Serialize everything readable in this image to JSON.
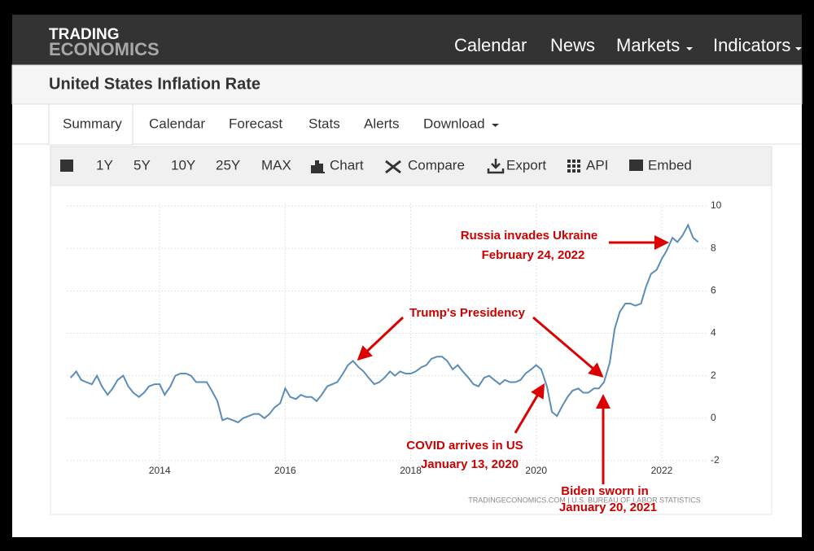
{
  "header": {
    "logo_top": "TRADING",
    "logo_bottom": "ECONOMICS",
    "menu": [
      "Calendar",
      "News",
      "Markets",
      "Indicators"
    ]
  },
  "page_title": "United States Inflation Rate",
  "tabs": [
    "Summary",
    "Calendar",
    "Forecast",
    "Stats",
    "Alerts",
    "Download"
  ],
  "toolbar": [
    "1Y",
    "5Y",
    "10Y",
    "25Y",
    "MAX",
    "Chart",
    "Compare",
    "Export",
    "API",
    "Embed"
  ],
  "chart_data": {
    "type": "line",
    "color": "#5b8db8",
    "x": [
      2012.58,
      2012.67,
      2012.75,
      2012.83,
      2012.92,
      2013,
      2013.08,
      2013.17,
      2013.25,
      2013.33,
      2013.42,
      2013.5,
      2013.58,
      2013.67,
      2013.75,
      2013.83,
      2013.92,
      2014,
      2014.08,
      2014.17,
      2014.25,
      2014.33,
      2014.42,
      2014.5,
      2014.58,
      2014.67,
      2014.75,
      2014.83,
      2014.92,
      2015,
      2015.08,
      2015.17,
      2015.25,
      2015.33,
      2015.42,
      2015.5,
      2015.58,
      2015.67,
      2015.75,
      2015.83,
      2015.92,
      2016,
      2016.08,
      2016.17,
      2016.25,
      2016.33,
      2016.42,
      2016.5,
      2016.58,
      2016.67,
      2016.75,
      2016.83,
      2016.92,
      2017,
      2017.08,
      2017.17,
      2017.25,
      2017.33,
      2017.42,
      2017.5,
      2017.58,
      2017.67,
      2017.75,
      2017.83,
      2017.92,
      2018,
      2018.08,
      2018.17,
      2018.25,
      2018.33,
      2018.42,
      2018.5,
      2018.58,
      2018.67,
      2018.75,
      2018.83,
      2018.92,
      2019,
      2019.08,
      2019.17,
      2019.25,
      2019.33,
      2019.42,
      2019.5,
      2019.58,
      2019.67,
      2019.75,
      2019.83,
      2019.92,
      2020,
      2020.08,
      2020.17,
      2020.25,
      2020.33,
      2020.42,
      2020.5,
      2020.58,
      2020.67,
      2020.75,
      2020.83,
      2020.92,
      2021,
      2021.08,
      2021.17,
      2021.25,
      2021.33,
      2021.42,
      2021.5,
      2021.58,
      2021.67,
      2021.75,
      2021.83,
      2021.92,
      2022,
      2022.08,
      2022.17,
      2022.25,
      2022.33,
      2022.42,
      2022.5,
      2022.58
    ],
    "values": [
      1.9,
      2.2,
      1.8,
      1.7,
      1.6,
      2.0,
      1.5,
      1.1,
      1.4,
      1.8,
      2.0,
      1.5,
      1.2,
      1.0,
      1.2,
      1.5,
      1.6,
      1.6,
      1.1,
      1.5,
      2.0,
      2.1,
      2.1,
      2.0,
      1.7,
      1.7,
      1.7,
      1.3,
      0.8,
      -0.1,
      0.0,
      -0.1,
      -0.2,
      0.0,
      0.1,
      0.2,
      0.2,
      0.0,
      0.2,
      0.5,
      0.7,
      1.4,
      1.0,
      0.9,
      1.1,
      1.0,
      1.0,
      0.8,
      1.1,
      1.5,
      1.6,
      1.7,
      2.1,
      2.5,
      2.7,
      2.4,
      2.2,
      1.9,
      1.6,
      1.7,
      1.9,
      2.2,
      2.0,
      2.2,
      2.1,
      2.1,
      2.2,
      2.4,
      2.5,
      2.8,
      2.9,
      2.9,
      2.7,
      2.3,
      2.5,
      2.2,
      1.9,
      1.6,
      1.5,
      1.9,
      2.0,
      1.8,
      1.6,
      1.8,
      1.7,
      1.7,
      1.8,
      2.1,
      2.3,
      2.5,
      2.3,
      1.5,
      0.3,
      0.1,
      0.6,
      1.0,
      1.3,
      1.4,
      1.2,
      1.2,
      1.4,
      1.4,
      1.7,
      2.6,
      4.2,
      5.0,
      5.4,
      5.4,
      5.3,
      5.4,
      6.2,
      6.8,
      7.0,
      7.5,
      7.9,
      8.5,
      8.3,
      8.6,
      9.1,
      8.5,
      8.3
    ],
    "xlim": [
      2012.26,
      2022.74
    ],
    "xticks": [
      2014,
      2016,
      2018,
      2020,
      2022
    ],
    "ylim": [
      -3,
      10.5
    ],
    "yticks": [
      -2,
      0,
      2,
      4,
      6,
      8,
      10
    ],
    "grid": true,
    "source": "TRADINGECONOMICS.COM | U.S. BUREAU OF LABOR STATISTICS",
    "annotations": [
      {
        "lines": [
          "Russia invades Ukraine",
          "February 24, 2022"
        ]
      },
      {
        "lines": [
          "Trump's Presidency"
        ]
      },
      {
        "lines": [
          "COVID arrives in US",
          "January 13, 2020"
        ]
      },
      {
        "lines": [
          "Biden sworn in",
          "January 20, 2021"
        ]
      }
    ]
  }
}
